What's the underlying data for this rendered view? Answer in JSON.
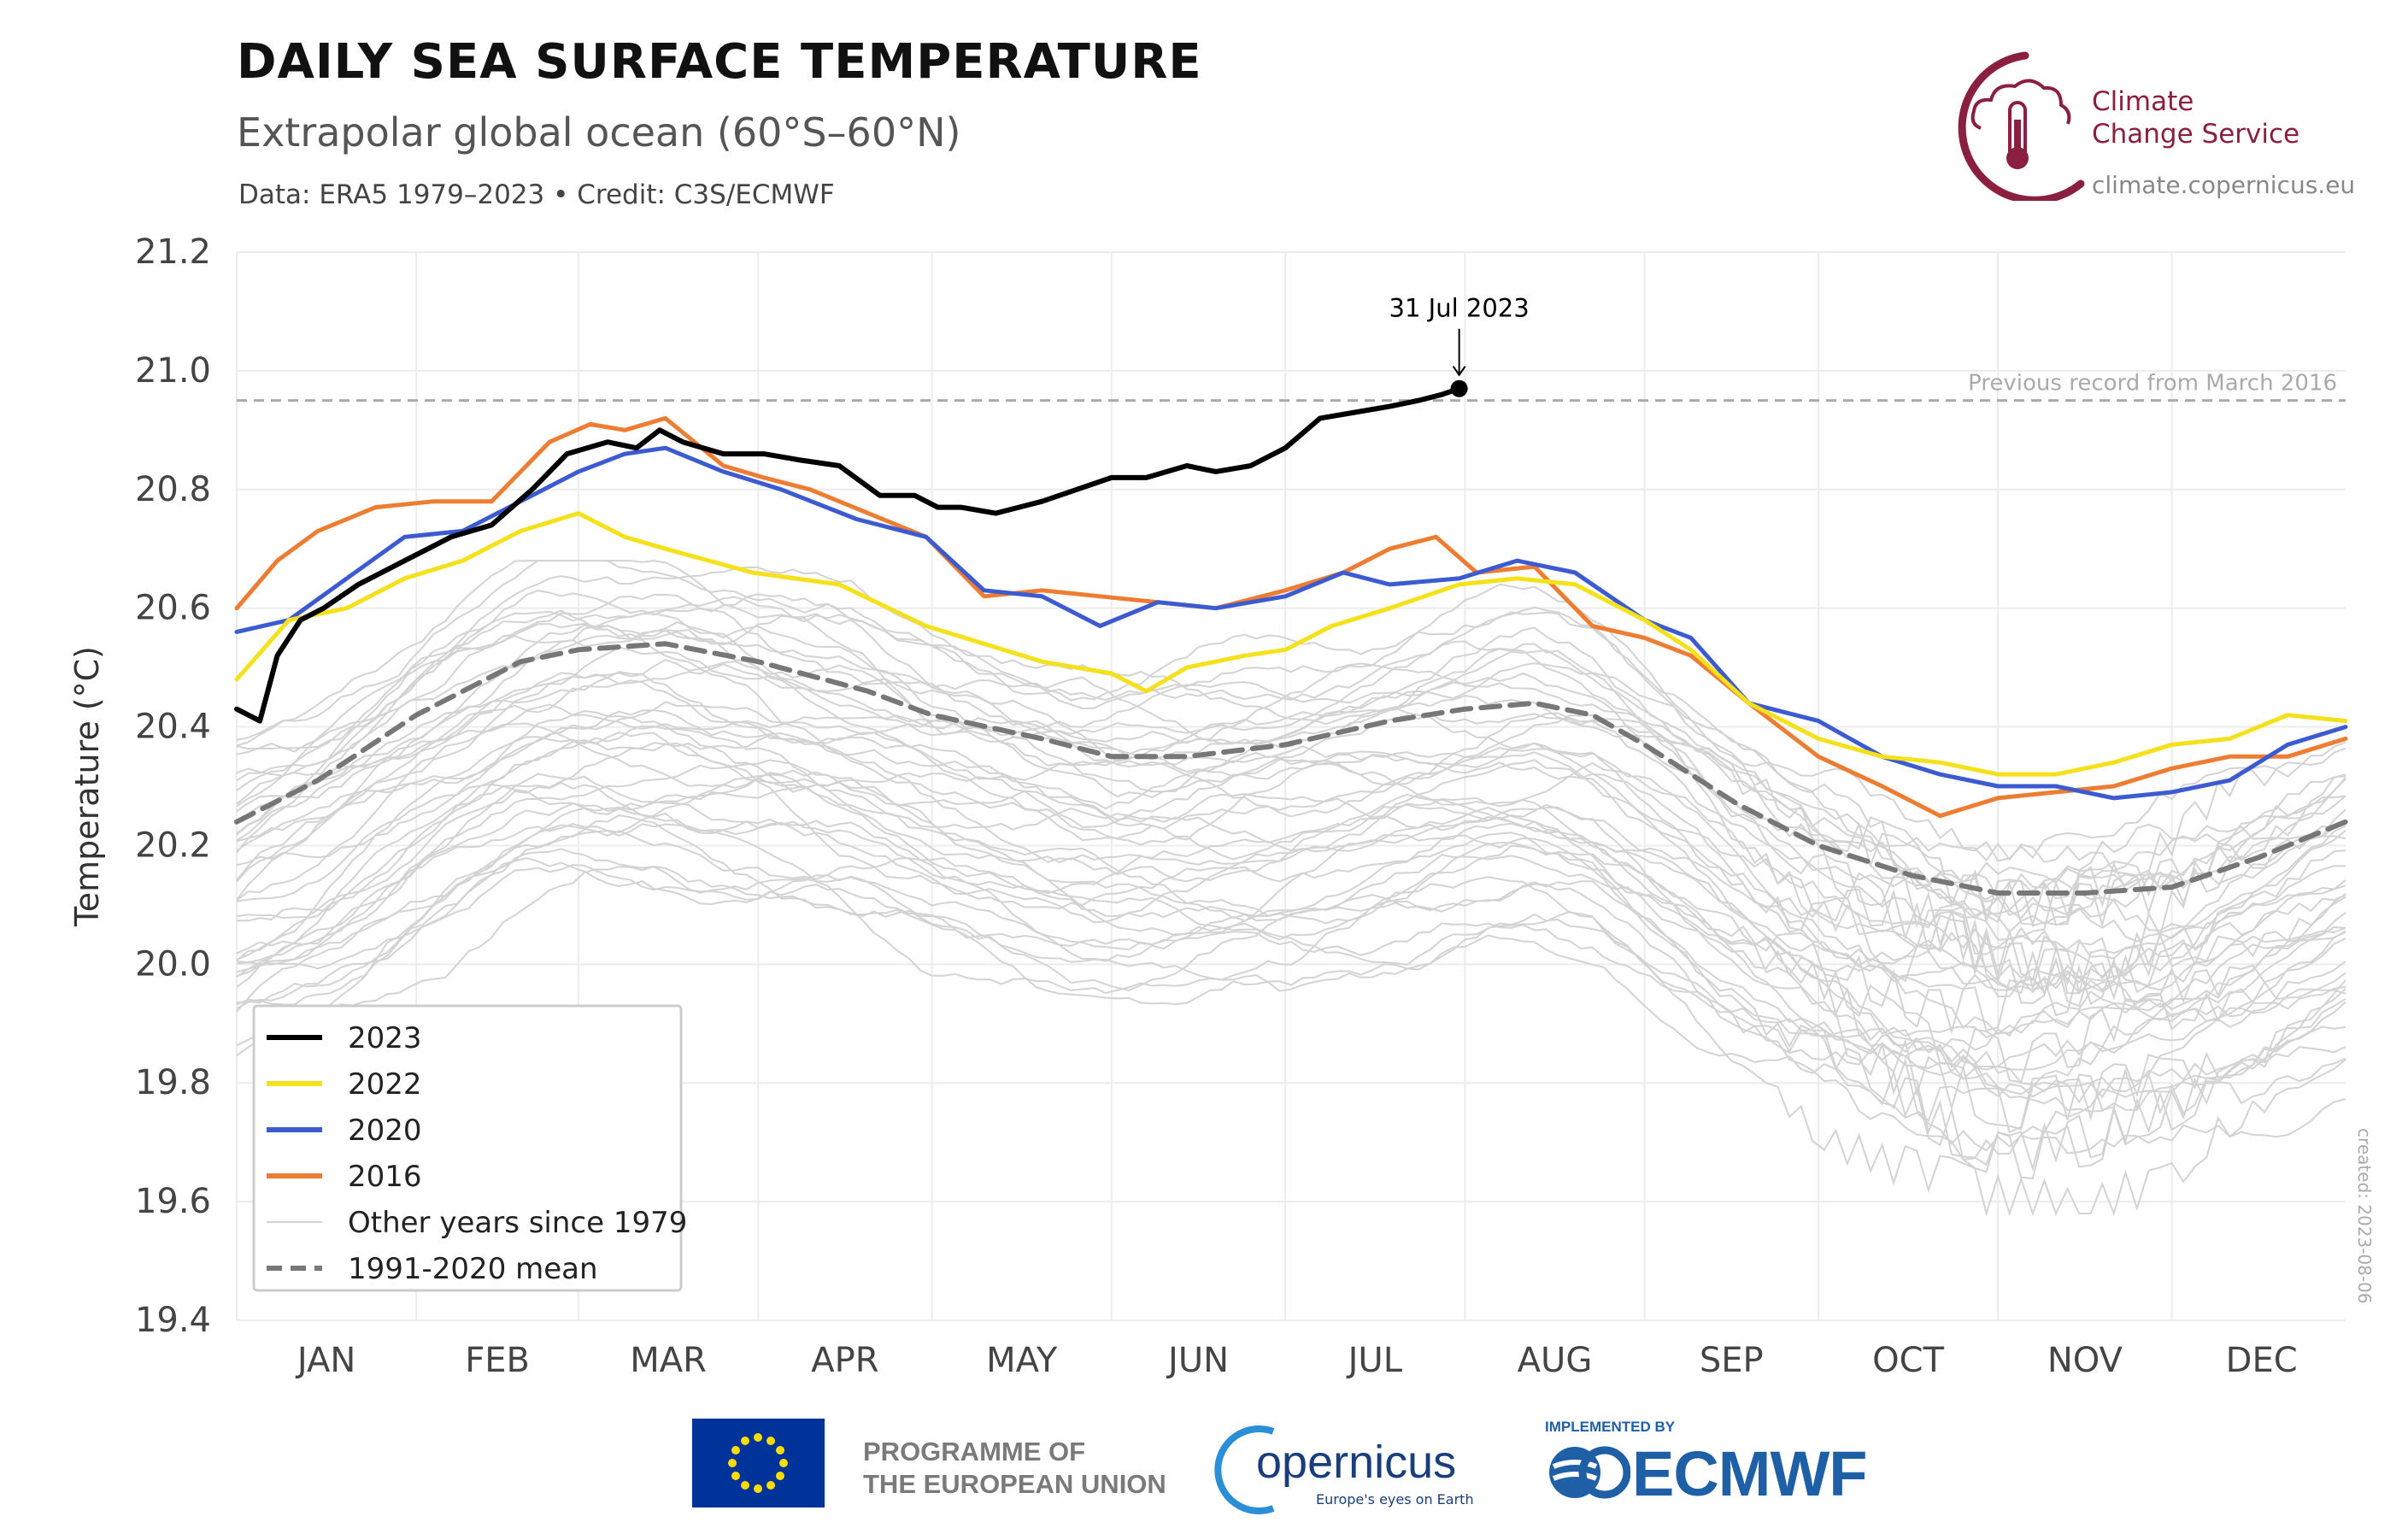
{
  "header": {
    "title": "DAILY SEA SURFACE TEMPERATURE",
    "subtitle": "Extrapolar global ocean (60°S–60°N)",
    "credit": "Data: ERA5 1979–2023 • Credit: C3S/ECMWF"
  },
  "branding": {
    "c3s_name_line1": "Climate",
    "c3s_name_line2": "Change Service",
    "c3s_url": "climate.copernicus.eu",
    "eu_line1": "PROGRAMME OF",
    "eu_line2": "THE EUROPEAN UNION",
    "copernicus_name": "opernicus",
    "copernicus_tagline": "Europe's eyes on Earth",
    "ecmwf_implemented": "IMPLEMENTED BY",
    "ecmwf_name": "ECMWF",
    "brand_color": "#8b1f3f"
  },
  "created_note": "created: 2023-08-06",
  "chart_data": {
    "type": "line",
    "title": "DAILY SEA SURFACE TEMPERATURE",
    "xlabel": "",
    "ylabel": "Temperature (°C)",
    "ylim": [
      19.4,
      21.2
    ],
    "yticks": [
      19.4,
      19.6,
      19.8,
      20.0,
      20.2,
      20.4,
      20.6,
      20.8,
      21.0,
      21.2
    ],
    "y_tick_labels": [
      "19.4",
      "19.6",
      "19.8",
      "20.0",
      "20.2",
      "20.4",
      "20.6",
      "20.8",
      "21.0",
      "21.2"
    ],
    "x_unit": "day of year",
    "xlim": [
      1,
      365
    ],
    "month_labels": [
      "JAN",
      "FEB",
      "MAR",
      "APR",
      "MAY",
      "JUN",
      "JUL",
      "AUG",
      "SEP",
      "OCT",
      "NOV",
      "DEC"
    ],
    "month_starts": [
      1,
      32,
      60,
      91,
      121,
      152,
      182,
      213,
      244,
      274,
      305,
      335
    ],
    "grid": true,
    "legend_position": "bottom-left",
    "reference_line": {
      "value": 20.95,
      "label": "Previous record from March 2016",
      "color": "#aaaaaa"
    },
    "annotation": {
      "label": "31 Jul 2023",
      "x": 212,
      "y": 20.97
    },
    "background_years": {
      "label": "Other years since 1979",
      "color": "#d3d3d3",
      "count": 40,
      "range": [
        19.6,
        20.65
      ]
    },
    "series": [
      {
        "name": "2023",
        "color": "#000000",
        "width": 6,
        "x": [
          1,
          5,
          8,
          12,
          16,
          22,
          30,
          38,
          45,
          52,
          58,
          65,
          70,
          74,
          78,
          85,
          92,
          98,
          105,
          112,
          118,
          122,
          126,
          132,
          140,
          146,
          152,
          158,
          165,
          170,
          176,
          182,
          188,
          194,
          200,
          205,
          209,
          212
        ],
        "y": [
          20.43,
          20.41,
          20.52,
          20.58,
          20.6,
          20.64,
          20.68,
          20.72,
          20.74,
          20.8,
          20.86,
          20.88,
          20.87,
          20.9,
          20.88,
          20.86,
          20.86,
          20.85,
          20.84,
          20.79,
          20.79,
          20.77,
          20.77,
          20.76,
          20.78,
          20.8,
          20.82,
          20.82,
          20.84,
          20.83,
          20.84,
          20.87,
          20.92,
          20.93,
          20.94,
          20.95,
          20.96,
          20.97
        ]
      },
      {
        "name": "2022",
        "color": "#f5e11b",
        "width": 5,
        "x": [
          1,
          10,
          20,
          30,
          40,
          50,
          60,
          68,
          75,
          90,
          105,
          120,
          130,
          140,
          152,
          158,
          165,
          175,
          182,
          190,
          200,
          212,
          222,
          232,
          244,
          252,
          262,
          274,
          285,
          295,
          305,
          315,
          325,
          335,
          345,
          355,
          365
        ],
        "y": [
          20.48,
          20.58,
          20.6,
          20.65,
          20.68,
          20.73,
          20.76,
          20.72,
          20.7,
          20.66,
          20.64,
          20.57,
          20.54,
          20.51,
          20.49,
          20.46,
          20.5,
          20.52,
          20.53,
          20.57,
          20.6,
          20.64,
          20.65,
          20.64,
          20.58,
          20.53,
          20.44,
          20.38,
          20.35,
          20.34,
          20.32,
          20.32,
          20.34,
          20.37,
          20.38,
          20.42,
          20.41
        ]
      },
      {
        "name": "2020",
        "color": "#3d5bd1",
        "width": 5,
        "x": [
          1,
          10,
          20,
          30,
          40,
          50,
          60,
          68,
          75,
          85,
          95,
          108,
          120,
          130,
          140,
          150,
          160,
          170,
          182,
          192,
          200,
          212,
          222,
          232,
          244,
          252,
          262,
          274,
          285,
          295,
          305,
          315,
          325,
          335,
          345,
          355,
          365
        ],
        "y": [
          20.56,
          20.58,
          20.65,
          20.72,
          20.73,
          20.78,
          20.83,
          20.86,
          20.87,
          20.83,
          20.8,
          20.75,
          20.72,
          20.63,
          20.62,
          20.57,
          20.61,
          20.6,
          20.62,
          20.66,
          20.64,
          20.65,
          20.68,
          20.66,
          20.58,
          20.55,
          20.44,
          20.41,
          20.35,
          20.32,
          20.3,
          20.3,
          20.28,
          20.29,
          20.31,
          20.37,
          20.4
        ]
      },
      {
        "name": "2016",
        "color": "#ec7d32",
        "width": 5,
        "x": [
          1,
          8,
          15,
          25,
          35,
          45,
          55,
          62,
          68,
          75,
          80,
          85,
          92,
          100,
          110,
          120,
          130,
          140,
          150,
          160,
          170,
          182,
          192,
          200,
          208,
          215,
          225,
          235,
          244,
          252,
          262,
          274,
          285,
          295,
          305,
          315,
          325,
          335,
          345,
          355,
          365
        ],
        "y": [
          20.6,
          20.68,
          20.73,
          20.77,
          20.78,
          20.78,
          20.88,
          20.91,
          20.9,
          20.92,
          20.88,
          20.84,
          20.82,
          20.8,
          20.76,
          20.72,
          20.62,
          20.63,
          20.62,
          20.61,
          20.6,
          20.63,
          20.66,
          20.7,
          20.72,
          20.66,
          20.67,
          20.57,
          20.55,
          20.52,
          20.44,
          20.35,
          20.3,
          20.25,
          20.28,
          20.29,
          20.3,
          20.33,
          20.35,
          20.35,
          20.38
        ]
      },
      {
        "name": "1991-2020 mean",
        "color": "#777777",
        "width": 6,
        "dash": true,
        "x": [
          1,
          15,
          32,
          50,
          60,
          75,
          91,
          110,
          121,
          140,
          152,
          165,
          182,
          200,
          213,
          225,
          235,
          244,
          260,
          274,
          290,
          305,
          320,
          335,
          350,
          365
        ],
        "y": [
          20.24,
          20.31,
          20.42,
          20.51,
          20.53,
          20.54,
          20.51,
          20.46,
          20.42,
          20.38,
          20.35,
          20.35,
          20.37,
          20.41,
          20.43,
          20.44,
          20.42,
          20.37,
          20.27,
          20.2,
          20.15,
          20.12,
          20.12,
          20.13,
          20.18,
          20.24
        ]
      }
    ],
    "legend": [
      {
        "label": "2023",
        "color": "#000000",
        "style": "solid"
      },
      {
        "label": "2022",
        "color": "#f5e11b",
        "style": "solid"
      },
      {
        "label": "2020",
        "color": "#3d5bd1",
        "style": "solid"
      },
      {
        "label": "2016",
        "color": "#ec7d32",
        "style": "solid"
      },
      {
        "label": "Other years since 1979",
        "color": "#d3d3d3",
        "style": "thin"
      },
      {
        "label": "1991-2020 mean",
        "color": "#777777",
        "style": "dashed"
      }
    ]
  }
}
